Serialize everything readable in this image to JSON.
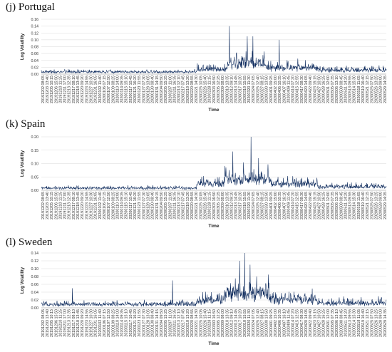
{
  "colors": {
    "series": "#0d2a5c",
    "grid": "#d9d9d9"
  },
  "x_tick_labels": [
    "20191202 08:05",
    "20191203 13:40",
    "20191205 10:15",
    "20191206 15:50",
    "20191210 11:25",
    "20191211 17:00",
    "20191213 12:35",
    "20191217 08:10",
    "20191218 13:45",
    "20191220 09:20",
    "20191223 14:55",
    "20191227 10:30",
    "20191231 16:05",
    "20200102 11:40",
    "20200106 07:15",
    "20200107 12:50",
    "20200109 08:25",
    "20200110 14:00",
    "20200114 09:35",
    "20200115 15:10",
    "20200117 10:45",
    "20200121 16:20",
    "20200123 11:55",
    "20200127 07:30",
    "20200128 13:05",
    "20200130 08:40",
    "20200131 14:15",
    "20200204 09:50",
    "20200205 15:25",
    "20200207 11:00",
    "20200211 16:35",
    "20200213 12:10",
    "20200217 07:45",
    "20200218 13:20",
    "20200220 08:55",
    "20200221 14:30",
    "20200225 10:05",
    "20200226 15:40",
    "20200228 11:15",
    "20200303 16:50",
    "20200305 12:25",
    "20200309 08:00",
    "20200310 13:35",
    "20200312 09:10",
    "20200313 14:45",
    "20200317 10:20",
    "20200318 15:55",
    "20200320 11:30",
    "20200324 07:05",
    "20200325 12:40",
    "20200327 08:15",
    "20200330 13:50",
    "20200401 09:25",
    "20200402 15:00",
    "20200406 10:35",
    "20200407 16:10",
    "20200409 11:45",
    "20200414 07:20",
    "20200415 12:55",
    "20200417 08:30",
    "20200420 14:05",
    "20200422 09:40",
    "20200423 15:15",
    "20200427 10:50",
    "20200428 16:25",
    "20200501 12:00",
    "20200505 07:35",
    "20200506 13:10",
    "20200508 08:45",
    "20200511 14:20",
    "20200513 09:55",
    "20200514 15:30",
    "20200518 11:05",
    "20200519 16:40",
    "20200521 12:15",
    "20200525 07:50",
    "20200526 13:25",
    "20200528 09:00",
    "20200529 14:35"
  ],
  "chart_data": [
    {
      "type": "line",
      "title": "(j) Portugal",
      "xlabel": "Time",
      "ylabel": "Log Volatility",
      "ylim": [
        0,
        0.16
      ],
      "y_ticks": [
        "0.00",
        "0.02",
        "0.04",
        "0.06",
        "0.08",
        "0.10",
        "0.12",
        "0.14",
        "0.16"
      ],
      "grid": true,
      "series": [
        {
          "segments": [
            {
              "from": 0,
              "to": 0.45,
              "base": 0.005,
              "noise": 0.008
            },
            {
              "from": 0.45,
              "to": 0.54,
              "base": 0.012,
              "noise": 0.018
            },
            {
              "from": 0.54,
              "to": 0.65,
              "base": 0.025,
              "noise": 0.045
            },
            {
              "from": 0.65,
              "to": 0.8,
              "base": 0.015,
              "noise": 0.025
            },
            {
              "from": 0.8,
              "to": 1,
              "base": 0.009,
              "noise": 0.015
            }
          ],
          "spikes": [
            {
              "at": 0.545,
              "value": 0.14
            },
            {
              "at": 0.597,
              "value": 0.11
            },
            {
              "at": 0.613,
              "value": 0.11
            },
            {
              "at": 0.69,
              "value": 0.1
            }
          ]
        }
      ]
    },
    {
      "type": "line",
      "title": "(k) Spain",
      "xlabel": "Time",
      "ylabel": "Log Volatility",
      "ylim": [
        0,
        0.2
      ],
      "y_ticks": [
        "0.00",
        "0.05",
        "0.10",
        "0.15",
        "0.20"
      ],
      "grid": true,
      "series": [
        {
          "segments": [
            {
              "from": 0,
              "to": 0.45,
              "base": 0.006,
              "noise": 0.012
            },
            {
              "from": 0.45,
              "to": 0.53,
              "base": 0.02,
              "noise": 0.035
            },
            {
              "from": 0.53,
              "to": 0.66,
              "base": 0.035,
              "noise": 0.06
            },
            {
              "from": 0.66,
              "to": 0.8,
              "base": 0.02,
              "noise": 0.035
            },
            {
              "from": 0.8,
              "to": 1,
              "base": 0.01,
              "noise": 0.02
            }
          ],
          "spikes": [
            {
              "at": 0.555,
              "value": 0.145
            },
            {
              "at": 0.608,
              "value": 0.205
            },
            {
              "at": 0.63,
              "value": 0.12
            }
          ]
        }
      ]
    },
    {
      "type": "line",
      "title": "(l) Sweden",
      "xlabel": "Time",
      "ylabel": "Log Volatility",
      "ylim": [
        0,
        0.14
      ],
      "y_ticks": [
        "0.00",
        "0.02",
        "0.04",
        "0.06",
        "0.08",
        "0.10",
        "0.12",
        "0.14"
      ],
      "grid": true,
      "series": [
        {
          "segments": [
            {
              "from": 0,
              "to": 0.45,
              "base": 0.007,
              "noise": 0.012
            },
            {
              "from": 0.45,
              "to": 0.53,
              "base": 0.015,
              "noise": 0.028
            },
            {
              "from": 0.53,
              "to": 0.66,
              "base": 0.03,
              "noise": 0.055
            },
            {
              "from": 0.66,
              "to": 0.8,
              "base": 0.016,
              "noise": 0.03
            },
            {
              "from": 0.8,
              "to": 1,
              "base": 0.009,
              "noise": 0.018
            }
          ],
          "spikes": [
            {
              "at": 0.59,
              "value": 0.145
            },
            {
              "at": 0.575,
              "value": 0.12
            },
            {
              "at": 0.605,
              "value": 0.11
            },
            {
              "at": 0.09,
              "value": 0.05
            },
            {
              "at": 0.38,
              "value": 0.07
            }
          ]
        }
      ]
    }
  ]
}
